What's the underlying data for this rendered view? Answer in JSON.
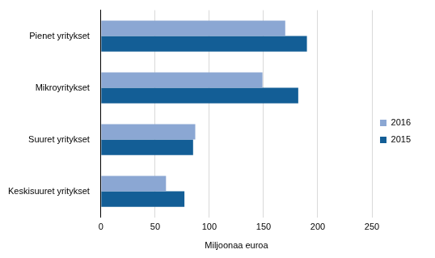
{
  "chart_data": {
    "type": "bar",
    "orientation": "horizontal",
    "categories": [
      "Pienet yritykset",
      "Mikroyritykset",
      "Suuret yritykset",
      "Keskisuuret yritykset"
    ],
    "series": [
      {
        "name": "2016",
        "color": "#8ba7d3",
        "values": [
          170,
          149,
          87,
          60
        ]
      },
      {
        "name": "2015",
        "color": "#135e96",
        "values": [
          190,
          182,
          85,
          77
        ]
      }
    ],
    "xlabel": "Miljoonaa euroa",
    "xlim": [
      0,
      250
    ],
    "xticks": [
      0,
      50,
      100,
      150,
      200,
      250
    ],
    "grid": true,
    "legend": "right"
  }
}
